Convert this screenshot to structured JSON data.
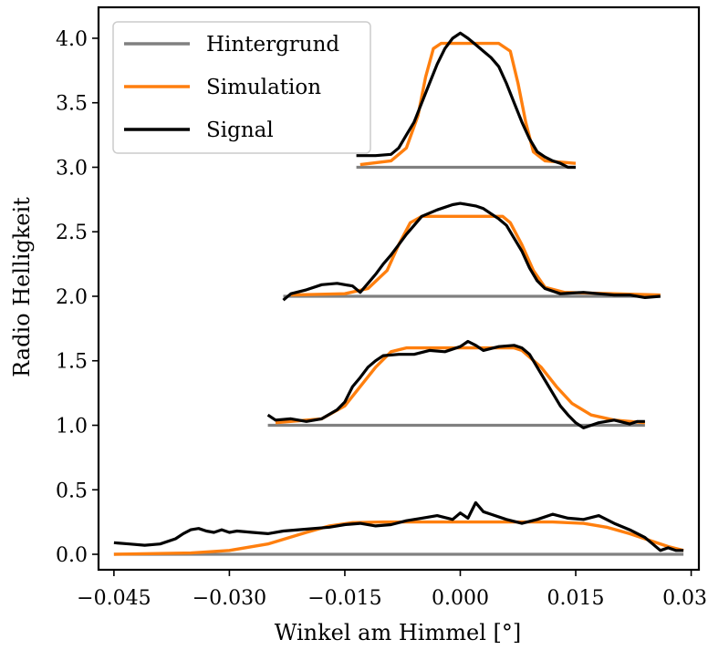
{
  "chart_data": {
    "type": "line",
    "title": "",
    "xlabel": "Winkel am Himmel [°]",
    "ylabel": "Radio Helligkeit",
    "xlim": [
      -0.047,
      0.031
    ],
    "ylim": [
      -0.12,
      4.24
    ],
    "xticks": [
      -0.045,
      -0.03,
      -0.015,
      0.0,
      0.015,
      0.03
    ],
    "xtick_labels": [
      "−0.045",
      "−0.030",
      "−0.015",
      "0.000",
      "0.015",
      "0.030"
    ],
    "yticks": [
      0.0,
      0.5,
      1.0,
      1.5,
      2.0,
      2.5,
      3.0,
      3.5,
      4.0
    ],
    "ytick_labels": [
      "0.0",
      "0.5",
      "1.0",
      "1.5",
      "2.0",
      "2.5",
      "3.0",
      "3.5",
      "4.0"
    ],
    "legend": {
      "placement": "top-left",
      "entries": [
        {
          "label": "Hintergrund",
          "color": "#808080"
        },
        {
          "label": "Simulation",
          "color": "#ff7f0e"
        },
        {
          "label": "Signal",
          "color": "#000000"
        }
      ]
    },
    "colors": {
      "background": "#808080",
      "simulation": "#ff7f0e",
      "signal": "#000000"
    },
    "series": [
      {
        "name": "Hintergrund",
        "color": "#808080",
        "segments": [
          [
            [
              -0.045,
              0.0
            ],
            [
              0.029,
              0.0
            ]
          ],
          [
            [
              -0.025,
              1.0
            ],
            [
              0.024,
              1.0
            ]
          ],
          [
            [
              -0.023,
              2.0
            ],
            [
              0.026,
              2.0
            ]
          ],
          [
            [
              -0.0135,
              3.0
            ],
            [
              0.015,
              3.0
            ]
          ]
        ]
      },
      {
        "name": "Simulation",
        "color": "#ff7f0e",
        "segments": [
          [
            [
              -0.045,
              0.0
            ],
            [
              -0.035,
              0.01
            ],
            [
              -0.03,
              0.03
            ],
            [
              -0.025,
              0.08
            ],
            [
              -0.02,
              0.17
            ],
            [
              -0.017,
              0.22
            ],
            [
              -0.014,
              0.245
            ],
            [
              -0.01,
              0.25
            ],
            [
              0.0,
              0.25
            ],
            [
              0.012,
              0.25
            ],
            [
              0.016,
              0.24
            ],
            [
              0.019,
              0.21
            ],
            [
              0.022,
              0.16
            ],
            [
              0.025,
              0.1
            ],
            [
              0.027,
              0.06
            ],
            [
              0.029,
              0.03
            ]
          ],
          [
            [
              -0.024,
              1.02
            ],
            [
              -0.018,
              1.05
            ],
            [
              -0.015,
              1.15
            ],
            [
              -0.013,
              1.3
            ],
            [
              -0.011,
              1.45
            ],
            [
              -0.009,
              1.57
            ],
            [
              -0.007,
              1.6
            ],
            [
              0.0,
              1.6
            ],
            [
              0.007,
              1.6
            ],
            [
              0.008,
              1.58
            ],
            [
              0.0105,
              1.45
            ],
            [
              0.0125,
              1.3
            ],
            [
              0.0145,
              1.17
            ],
            [
              0.017,
              1.08
            ],
            [
              0.02,
              1.04
            ],
            [
              0.024,
              1.02
            ]
          ],
          [
            [
              -0.022,
              2.01
            ],
            [
              -0.015,
              2.02
            ],
            [
              -0.012,
              2.06
            ],
            [
              -0.0095,
              2.2
            ],
            [
              -0.008,
              2.4
            ],
            [
              -0.0065,
              2.57
            ],
            [
              -0.005,
              2.62
            ],
            [
              0.0,
              2.62
            ],
            [
              0.0055,
              2.62
            ],
            [
              0.0065,
              2.57
            ],
            [
              0.008,
              2.4
            ],
            [
              0.0095,
              2.2
            ],
            [
              0.011,
              2.07
            ],
            [
              0.0135,
              2.03
            ],
            [
              0.026,
              2.01
            ]
          ],
          [
            [
              -0.013,
              3.02
            ],
            [
              -0.009,
              3.05
            ],
            [
              -0.007,
              3.15
            ],
            [
              -0.0055,
              3.4
            ],
            [
              -0.0045,
              3.7
            ],
            [
              -0.0035,
              3.92
            ],
            [
              -0.0025,
              3.96
            ],
            [
              0.0,
              3.96
            ],
            [
              0.005,
              3.96
            ],
            [
              0.0065,
              3.9
            ],
            [
              0.0075,
              3.65
            ],
            [
              0.0085,
              3.35
            ],
            [
              0.0095,
              3.12
            ],
            [
              0.011,
              3.05
            ],
            [
              0.015,
              3.03
            ]
          ]
        ]
      },
      {
        "name": "Signal",
        "color": "#000000",
        "segments": [
          [
            [
              -0.045,
              0.09
            ],
            [
              -0.043,
              0.08
            ],
            [
              -0.041,
              0.07
            ],
            [
              -0.039,
              0.08
            ],
            [
              -0.037,
              0.12
            ],
            [
              -0.036,
              0.16
            ],
            [
              -0.035,
              0.19
            ],
            [
              -0.034,
              0.2
            ],
            [
              -0.033,
              0.18
            ],
            [
              -0.032,
              0.17
            ],
            [
              -0.031,
              0.19
            ],
            [
              -0.03,
              0.17
            ],
            [
              -0.029,
              0.18
            ],
            [
              -0.027,
              0.17
            ],
            [
              -0.025,
              0.16
            ],
            [
              -0.023,
              0.18
            ],
            [
              -0.021,
              0.19
            ],
            [
              -0.019,
              0.2
            ],
            [
              -0.017,
              0.21
            ],
            [
              -0.015,
              0.23
            ],
            [
              -0.013,
              0.24
            ],
            [
              -0.011,
              0.22
            ],
            [
              -0.009,
              0.23
            ],
            [
              -0.007,
              0.26
            ],
            [
              -0.005,
              0.28
            ],
            [
              -0.003,
              0.3
            ],
            [
              -0.001,
              0.27
            ],
            [
              0.0,
              0.32
            ],
            [
              0.001,
              0.28
            ],
            [
              0.002,
              0.4
            ],
            [
              0.003,
              0.33
            ],
            [
              0.004,
              0.31
            ],
            [
              0.006,
              0.27
            ],
            [
              0.008,
              0.24
            ],
            [
              0.01,
              0.27
            ],
            [
              0.012,
              0.31
            ],
            [
              0.014,
              0.28
            ],
            [
              0.016,
              0.27
            ],
            [
              0.018,
              0.3
            ],
            [
              0.02,
              0.24
            ],
            [
              0.022,
              0.19
            ],
            [
              0.024,
              0.13
            ],
            [
              0.025,
              0.08
            ],
            [
              0.026,
              0.03
            ],
            [
              0.027,
              0.05
            ],
            [
              0.028,
              0.03
            ],
            [
              0.029,
              0.03
            ]
          ],
          [
            [
              -0.025,
              1.08
            ],
            [
              -0.024,
              1.04
            ],
            [
              -0.022,
              1.05
            ],
            [
              -0.02,
              1.03
            ],
            [
              -0.018,
              1.05
            ],
            [
              -0.016,
              1.12
            ],
            [
              -0.015,
              1.18
            ],
            [
              -0.014,
              1.3
            ],
            [
              -0.013,
              1.37
            ],
            [
              -0.012,
              1.45
            ],
            [
              -0.011,
              1.5
            ],
            [
              -0.01,
              1.54
            ],
            [
              -0.008,
              1.55
            ],
            [
              -0.006,
              1.55
            ],
            [
              -0.004,
              1.58
            ],
            [
              -0.002,
              1.57
            ],
            [
              0.0,
              1.61
            ],
            [
              0.001,
              1.65
            ],
            [
              0.002,
              1.62
            ],
            [
              0.003,
              1.58
            ],
            [
              0.005,
              1.61
            ],
            [
              0.007,
              1.62
            ],
            [
              0.008,
              1.6
            ],
            [
              0.009,
              1.55
            ],
            [
              0.01,
              1.45
            ],
            [
              0.011,
              1.35
            ],
            [
              0.012,
              1.25
            ],
            [
              0.013,
              1.15
            ],
            [
              0.014,
              1.08
            ],
            [
              0.015,
              1.02
            ],
            [
              0.016,
              0.98
            ],
            [
              0.017,
              1.0
            ],
            [
              0.018,
              1.02
            ],
            [
              0.02,
              1.04
            ],
            [
              0.022,
              1.01
            ],
            [
              0.023,
              1.03
            ],
            [
              0.024,
              1.03
            ]
          ],
          [
            [
              -0.023,
              1.97
            ],
            [
              -0.022,
              2.02
            ],
            [
              -0.02,
              2.05
            ],
            [
              -0.018,
              2.09
            ],
            [
              -0.016,
              2.1
            ],
            [
              -0.014,
              2.08
            ],
            [
              -0.013,
              2.03
            ],
            [
              -0.012,
              2.1
            ],
            [
              -0.011,
              2.17
            ],
            [
              -0.01,
              2.25
            ],
            [
              -0.009,
              2.32
            ],
            [
              -0.008,
              2.4
            ],
            [
              -0.007,
              2.48
            ],
            [
              -0.006,
              2.55
            ],
            [
              -0.005,
              2.62
            ],
            [
              -0.003,
              2.67
            ],
            [
              -0.001,
              2.71
            ],
            [
              0.0,
              2.72
            ],
            [
              0.002,
              2.7
            ],
            [
              0.003,
              2.68
            ],
            [
              0.004,
              2.64
            ],
            [
              0.005,
              2.6
            ],
            [
              0.006,
              2.55
            ],
            [
              0.007,
              2.45
            ],
            [
              0.008,
              2.35
            ],
            [
              0.009,
              2.22
            ],
            [
              0.01,
              2.12
            ],
            [
              0.011,
              2.06
            ],
            [
              0.013,
              2.02
            ],
            [
              0.016,
              2.03
            ],
            [
              0.018,
              2.02
            ],
            [
              0.02,
              2.01
            ],
            [
              0.022,
              2.01
            ],
            [
              0.024,
              1.99
            ],
            [
              0.026,
              2.0
            ]
          ],
          [
            [
              -0.0135,
              3.09
            ],
            [
              -0.011,
              3.09
            ],
            [
              -0.009,
              3.1
            ],
            [
              -0.008,
              3.15
            ],
            [
              -0.007,
              3.25
            ],
            [
              -0.006,
              3.35
            ],
            [
              -0.005,
              3.5
            ],
            [
              -0.004,
              3.65
            ],
            [
              -0.003,
              3.8
            ],
            [
              -0.002,
              3.92
            ],
            [
              -0.001,
              4.0
            ],
            [
              0.0,
              4.04
            ],
            [
              0.001,
              4.0
            ],
            [
              0.002,
              3.95
            ],
            [
              0.003,
              3.9
            ],
            [
              0.004,
              3.85
            ],
            [
              0.005,
              3.78
            ],
            [
              0.006,
              3.65
            ],
            [
              0.007,
              3.5
            ],
            [
              0.008,
              3.35
            ],
            [
              0.009,
              3.22
            ],
            [
              0.01,
              3.12
            ],
            [
              0.011,
              3.08
            ],
            [
              0.012,
              3.05
            ],
            [
              0.013,
              3.03
            ],
            [
              0.014,
              3.0
            ],
            [
              0.015,
              3.0
            ]
          ]
        ]
      }
    ]
  }
}
